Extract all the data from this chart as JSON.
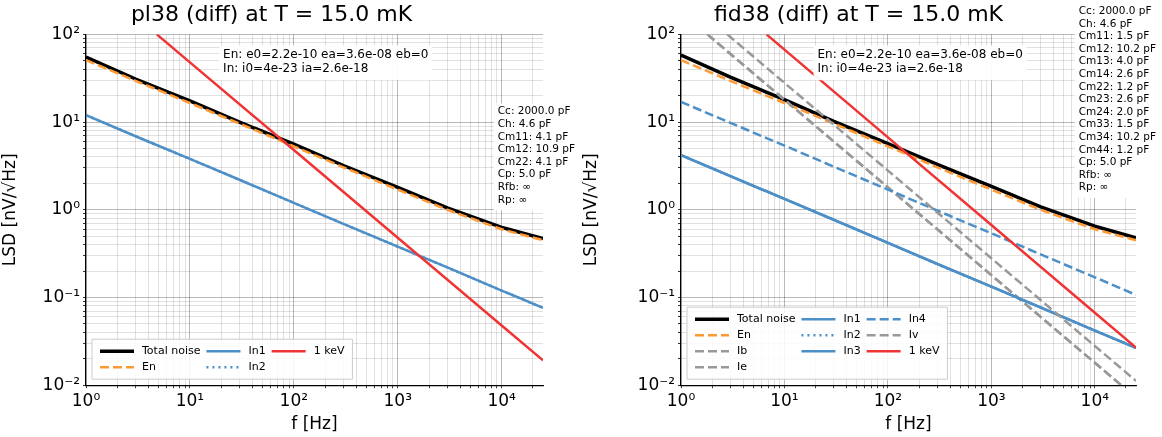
{
  "chart_data": [
    {
      "type": "line",
      "title": "pl38 (diff) at T = 15.0 mK",
      "xlabel": "f [Hz]",
      "ylabel": "LSD [nV/√Hz]",
      "log": "xy",
      "grid": true,
      "legend": "bottom left",
      "marker": "none",
      "xlim": [
        1,
        25000
      ],
      "ylim": [
        0.01,
        100
      ],
      "xticks": [
        {
          "value": 1,
          "label": "10⁰"
        },
        {
          "value": 2,
          "label": null
        },
        {
          "value": 3,
          "label": null
        },
        {
          "value": 4,
          "label": null
        },
        {
          "value": 5,
          "label": null
        },
        {
          "value": 6,
          "label": null
        },
        {
          "value": 7,
          "label": null
        },
        {
          "value": 8,
          "label": null
        },
        {
          "value": 9,
          "label": null
        },
        {
          "value": 10,
          "label": "10¹"
        },
        {
          "value": 20,
          "label": null
        },
        {
          "value": 30,
          "label": null
        },
        {
          "value": 40,
          "label": null
        },
        {
          "value": 50,
          "label": null
        },
        {
          "value": 60,
          "label": null
        },
        {
          "value": 70,
          "label": null
        },
        {
          "value": 80,
          "label": null
        },
        {
          "value": 90,
          "label": null
        },
        {
          "value": 100,
          "label": "10²"
        },
        {
          "value": 200,
          "label": null
        },
        {
          "value": 300,
          "label": null
        },
        {
          "value": 400,
          "label": null
        },
        {
          "value": 500,
          "label": null
        },
        {
          "value": 600,
          "label": null
        },
        {
          "value": 700,
          "label": null
        },
        {
          "value": 800,
          "label": null
        },
        {
          "value": 900,
          "label": null
        },
        {
          "value": 1000,
          "label": "10³"
        },
        {
          "value": 2000,
          "label": null
        },
        {
          "value": 3000,
          "label": null
        },
        {
          "value": 4000,
          "label": null
        },
        {
          "value": 5000,
          "label": null
        },
        {
          "value": 6000,
          "label": null
        },
        {
          "value": 7000,
          "label": null
        },
        {
          "value": 8000,
          "label": null
        },
        {
          "value": 9000,
          "label": null
        },
        {
          "value": 10000,
          "label": "10⁴"
        },
        {
          "value": 20000,
          "label": null
        }
      ],
      "yticks": [
        {
          "value": 0.01,
          "label": "10⁻²"
        },
        {
          "value": 0.02,
          "label": null
        },
        {
          "value": 0.03,
          "label": null
        },
        {
          "value": 0.04,
          "label": null
        },
        {
          "value": 0.05,
          "label": null
        },
        {
          "value": 0.06,
          "label": null
        },
        {
          "value": 0.07,
          "label": null
        },
        {
          "value": 0.08,
          "label": null
        },
        {
          "value": 0.09,
          "label": null
        },
        {
          "value": 0.1,
          "label": "10⁻¹"
        },
        {
          "value": 0.2,
          "label": null
        },
        {
          "value": 0.3,
          "label": null
        },
        {
          "value": 0.4,
          "label": null
        },
        {
          "value": 0.5,
          "label": null
        },
        {
          "value": 0.6,
          "label": null
        },
        {
          "value": 0.7,
          "label": null
        },
        {
          "value": 0.8,
          "label": null
        },
        {
          "value": 0.9,
          "label": null
        },
        {
          "value": 1,
          "label": "10⁰"
        },
        {
          "value": 2,
          "label": null
        },
        {
          "value": 3,
          "label": null
        },
        {
          "value": 4,
          "label": null
        },
        {
          "value": 5,
          "label": null
        },
        {
          "value": 6,
          "label": null
        },
        {
          "value": 7,
          "label": null
        },
        {
          "value": 8,
          "label": null
        },
        {
          "value": 9,
          "label": null
        },
        {
          "value": 10,
          "label": "10¹"
        },
        {
          "value": 20,
          "label": null
        },
        {
          "value": 30,
          "label": null
        },
        {
          "value": 40,
          "label": null
        },
        {
          "value": 50,
          "label": null
        },
        {
          "value": 60,
          "label": null
        },
        {
          "value": 70,
          "label": null
        },
        {
          "value": 80,
          "label": null
        },
        {
          "value": 90,
          "label": null
        },
        {
          "value": 100,
          "label": "10²"
        }
      ],
      "annotations": [
        "En: e0=2.2e-10 ea=3.6e-08 eb=0\nIn: i0=4e-23 ia=2.6e-18",
        "Cc: 2000.0 pF\nCh: 4.6 pF\nCm11: 4.1 pF\nCm12: 10.9 pF\nCm22: 4.1 pF\nCp: 5.0 pF\nRfb: ∞\nRp: ∞"
      ],
      "series": [
        {
          "name": "Total noise",
          "color": "#000000",
          "line_style": "solid",
          "x": [
            1,
            3,
            10,
            30,
            100,
            300,
            1000,
            3000,
            10000,
            25000
          ],
          "values": [
            55,
            31,
            17.5,
            10,
            5.6,
            3.2,
            1.8,
            1.05,
            0.63,
            0.47
          ]
        },
        {
          "name": "En",
          "color": "#ff9933",
          "line_style": "dashed",
          "x": [
            1,
            3,
            10,
            30,
            100,
            300,
            1000,
            3000,
            10000,
            25000
          ],
          "values": [
            51,
            29.5,
            16.5,
            9.6,
            5.3,
            3.05,
            1.7,
            1,
            0.6,
            0.45
          ]
        },
        {
          "name": "In1",
          "color": "#4d8fc7",
          "line_style": "solid",
          "x": [
            1,
            3,
            10,
            30,
            100,
            300,
            1000,
            3000,
            10000,
            25000
          ],
          "values": [
            12,
            6.9,
            3.8,
            2.2,
            1.2,
            0.69,
            0.38,
            0.22,
            0.12,
            0.076
          ]
        },
        {
          "name": "In2",
          "color": "#4d8fc7",
          "line_style": "dotted",
          "x": [
            1,
            3,
            10,
            30,
            100,
            300,
            1000,
            3000,
            10000,
            25000
          ],
          "values": [
            12,
            6.9,
            3.8,
            2.2,
            1.2,
            0.69,
            0.38,
            0.22,
            0.12,
            0.076
          ]
        },
        {
          "name": "1 keV",
          "color": "#f03333",
          "line_style": "solid",
          "x": [
            4.8,
            10,
            100,
            1000,
            10000,
            25000
          ],
          "values": [
            100,
            48,
            4.8,
            0.48,
            0.048,
            0.0192
          ]
        }
      ]
    },
    {
      "type": "line",
      "title": "fid38 (diff) at T = 15.0 mK",
      "xlabel": "f [Hz]",
      "ylabel": "LSD [nV/√Hz]",
      "log": "xy",
      "grid": true,
      "legend": "bottom left",
      "marker": "none",
      "xlim": [
        1,
        25000
      ],
      "ylim": [
        0.01,
        100
      ],
      "xticks": [
        {
          "value": 1,
          "label": "10⁰"
        },
        {
          "value": 2,
          "label": null
        },
        {
          "value": 3,
          "label": null
        },
        {
          "value": 4,
          "label": null
        },
        {
          "value": 5,
          "label": null
        },
        {
          "value": 6,
          "label": null
        },
        {
          "value": 7,
          "label": null
        },
        {
          "value": 8,
          "label": null
        },
        {
          "value": 9,
          "label": null
        },
        {
          "value": 10,
          "label": "10¹"
        },
        {
          "value": 20,
          "label": null
        },
        {
          "value": 30,
          "label": null
        },
        {
          "value": 40,
          "label": null
        },
        {
          "value": 50,
          "label": null
        },
        {
          "value": 60,
          "label": null
        },
        {
          "value": 70,
          "label": null
        },
        {
          "value": 80,
          "label": null
        },
        {
          "value": 90,
          "label": null
        },
        {
          "value": 100,
          "label": "10²"
        },
        {
          "value": 200,
          "label": null
        },
        {
          "value": 300,
          "label": null
        },
        {
          "value": 400,
          "label": null
        },
        {
          "value": 500,
          "label": null
        },
        {
          "value": 600,
          "label": null
        },
        {
          "value": 700,
          "label": null
        },
        {
          "value": 800,
          "label": null
        },
        {
          "value": 900,
          "label": null
        },
        {
          "value": 1000,
          "label": "10³"
        },
        {
          "value": 2000,
          "label": null
        },
        {
          "value": 3000,
          "label": null
        },
        {
          "value": 4000,
          "label": null
        },
        {
          "value": 5000,
          "label": null
        },
        {
          "value": 6000,
          "label": null
        },
        {
          "value": 7000,
          "label": null
        },
        {
          "value": 8000,
          "label": null
        },
        {
          "value": 9000,
          "label": null
        },
        {
          "value": 10000,
          "label": "10⁴"
        },
        {
          "value": 20000,
          "label": null
        }
      ],
      "yticks": [
        {
          "value": 0.01,
          "label": "10⁻²"
        },
        {
          "value": 0.02,
          "label": null
        },
        {
          "value": 0.03,
          "label": null
        },
        {
          "value": 0.04,
          "label": null
        },
        {
          "value": 0.05,
          "label": null
        },
        {
          "value": 0.06,
          "label": null
        },
        {
          "value": 0.07,
          "label": null
        },
        {
          "value": 0.08,
          "label": null
        },
        {
          "value": 0.09,
          "label": null
        },
        {
          "value": 0.1,
          "label": "10⁻¹"
        },
        {
          "value": 0.2,
          "label": null
        },
        {
          "value": 0.3,
          "label": null
        },
        {
          "value": 0.4,
          "label": null
        },
        {
          "value": 0.5,
          "label": null
        },
        {
          "value": 0.6,
          "label": null
        },
        {
          "value": 0.7,
          "label": null
        },
        {
          "value": 0.8,
          "label": null
        },
        {
          "value": 0.9,
          "label": null
        },
        {
          "value": 1,
          "label": "10⁰"
        },
        {
          "value": 2,
          "label": null
        },
        {
          "value": 3,
          "label": null
        },
        {
          "value": 4,
          "label": null
        },
        {
          "value": 5,
          "label": null
        },
        {
          "value": 6,
          "label": null
        },
        {
          "value": 7,
          "label": null
        },
        {
          "value": 8,
          "label": null
        },
        {
          "value": 9,
          "label": null
        },
        {
          "value": 10,
          "label": "10¹"
        },
        {
          "value": 20,
          "label": null
        },
        {
          "value": 30,
          "label": null
        },
        {
          "value": 40,
          "label": null
        },
        {
          "value": 50,
          "label": null
        },
        {
          "value": 60,
          "label": null
        },
        {
          "value": 70,
          "label": null
        },
        {
          "value": 80,
          "label": null
        },
        {
          "value": 90,
          "label": null
        },
        {
          "value": 100,
          "label": "10²"
        }
      ],
      "annotations": [
        "En: e0=2.2e-10 ea=3.6e-08 eb=0\nIn: i0=4e-23 ia=2.6e-18",
        "Cc: 2000.0 pF\nCh: 4.6 pF\nCm11: 1.5 pF\nCm12: 10.2 pF\nCm13: 4.0 pF\nCm14: 2.6 pF\nCm22: 1.2 pF\nCm23: 2.6 pF\nCm24: 2.0 pF\nCm33: 1.5 pF\nCm34: 10.2 pF\nCm44: 1.2 pF\nCp: 5.0 pF\nRfb: ∞\nRp: ∞"
      ],
      "series": [
        {
          "name": "Total noise",
          "color": "#000000",
          "line_style": "solid",
          "x": [
            1,
            3,
            10,
            30,
            100,
            300,
            1000,
            3000,
            10000,
            25000
          ],
          "values": [
            58,
            32.5,
            18,
            10.2,
            5.7,
            3.3,
            1.85,
            1.08,
            0.65,
            0.48
          ]
        },
        {
          "name": "En",
          "color": "#ff9933",
          "line_style": "dashed",
          "x": [
            1,
            3,
            10,
            30,
            100,
            300,
            1000,
            3000,
            10000,
            25000
          ],
          "values": [
            51,
            29.5,
            16.5,
            9.6,
            5.3,
            3.05,
            1.7,
            1,
            0.6,
            0.45
          ]
        },
        {
          "name": "Ib",
          "color": "#999999",
          "line_style": "dashed",
          "x": [
            1.8,
            10,
            100,
            1000,
            10000,
            18000
          ],
          "values": [
            100,
            18,
            1.8,
            0.18,
            0.018,
            0.01
          ]
        },
        {
          "name": "Ie",
          "color": "#999999",
          "line_style": "dashed",
          "x": [
            1.8,
            10,
            100,
            1000,
            10000,
            18000
          ],
          "values": [
            100,
            18,
            1.8,
            0.18,
            0.018,
            0.01
          ]
        },
        {
          "name": "In1",
          "color": "#4d8fc7",
          "line_style": "solid",
          "x": [
            1,
            3,
            10,
            30,
            100,
            300,
            1000,
            3000,
            10000,
            25000
          ],
          "values": [
            4.2,
            2.42,
            1.33,
            0.77,
            0.42,
            0.24,
            0.133,
            0.077,
            0.042,
            0.0266
          ]
        },
        {
          "name": "In2",
          "color": "#4d8fc7",
          "line_style": "dotted",
          "x": [
            1,
            3,
            10,
            30,
            100,
            300,
            1000,
            3000,
            10000,
            25000
          ],
          "values": [
            4.2,
            2.42,
            1.33,
            0.77,
            0.42,
            0.24,
            0.133,
            0.077,
            0.042,
            0.0266
          ]
        },
        {
          "name": "In3",
          "color": "#4d8fc7",
          "line_style": "solid",
          "x": [
            1,
            10,
            100,
            1000,
            10000,
            25000
          ],
          "values": [
            4.2,
            1.33,
            0.42,
            0.133,
            0.042,
            0.0266
          ]
        },
        {
          "name": "In4",
          "color": "#4d8fc7",
          "line_style": "dashed",
          "x": [
            1,
            3,
            10,
            30,
            100,
            300,
            1000,
            3000,
            10000,
            25000
          ],
          "values": [
            17,
            9.8,
            5.4,
            3.1,
            1.7,
            0.98,
            0.54,
            0.31,
            0.17,
            0.107
          ]
        },
        {
          "name": "Iv",
          "color": "#999999",
          "line_style": "dashed",
          "x": [
            2.8,
            10,
            100,
            1000,
            10000,
            25000
          ],
          "values": [
            100,
            28,
            2.8,
            0.28,
            0.028,
            0.0112
          ]
        },
        {
          "name": "1 keV",
          "color": "#f03333",
          "line_style": "solid",
          "x": [
            6.7,
            10,
            100,
            1000,
            10000,
            25000
          ],
          "values": [
            100,
            67,
            6.7,
            0.67,
            0.067,
            0.0268
          ]
        }
      ]
    }
  ]
}
